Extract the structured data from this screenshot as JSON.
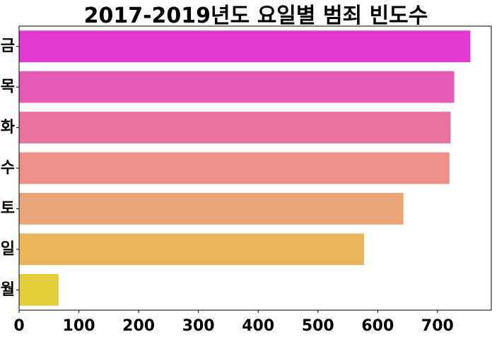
{
  "chart_data": {
    "type": "bar",
    "orientation": "horizontal",
    "title": "2017-2019년도 요일별 범죄 빈도수",
    "xlabel": "",
    "ylabel": "",
    "categories": [
      "금",
      "목",
      "화",
      "수",
      "토",
      "일",
      "월"
    ],
    "values": [
      755,
      728,
      722,
      720,
      643,
      577,
      66
    ],
    "colors": [
      "#e03ad2",
      "#e65ab8",
      "#ea739e",
      "#ee8f8a",
      "#eba476",
      "#e8b658",
      "#e2cf3a"
    ],
    "xlim": [
      0,
      790
    ],
    "xticks": [
      0,
      100,
      200,
      300,
      400,
      500,
      600,
      700
    ],
    "grid": false
  }
}
